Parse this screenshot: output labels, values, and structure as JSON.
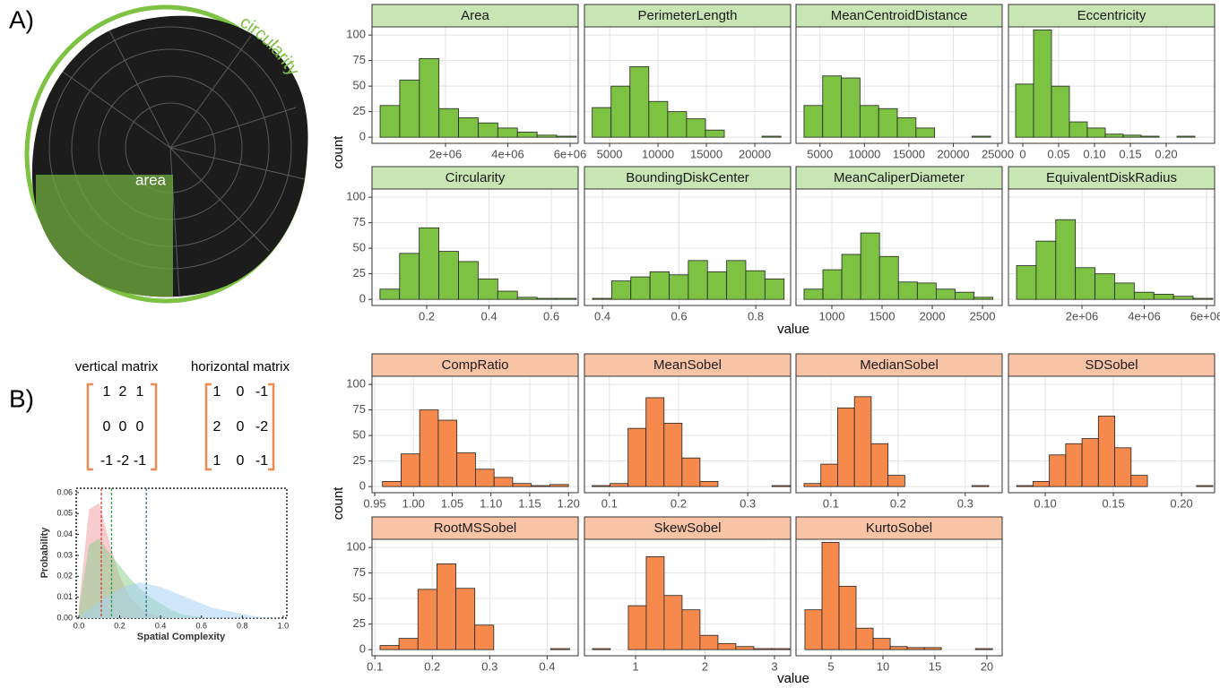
{
  "panels": [
    {
      "label": "A)",
      "ylabel": "count",
      "xlabel": "value"
    },
    {
      "label": "B)",
      "ylabel": "count",
      "xlabel": "value"
    }
  ],
  "image": {
    "circularity_label": "circularity",
    "area_label": "area"
  },
  "matrices": [
    {
      "title": "vertical matrix",
      "rows": [
        [
          1,
          2,
          1
        ],
        [
          0,
          0,
          0
        ],
        [
          -1,
          -2,
          -1
        ]
      ]
    },
    {
      "title": "horizontal matrix",
      "rows": [
        [
          1,
          0,
          -1
        ],
        [
          2,
          0,
          -2
        ],
        [
          1,
          0,
          -1
        ]
      ]
    }
  ],
  "chart_data": [
    {
      "type": "histogram",
      "title": "Area",
      "color": "#7dc242",
      "strip_color": "#c8e6b4",
      "bins": [
        -100000,
        530000,
        1160000,
        1790000,
        2420000,
        3050000,
        3680000,
        4310000,
        4940000,
        5570000,
        6200000
      ],
      "counts": [
        31,
        56,
        77,
        28,
        19,
        14,
        9,
        5,
        2,
        1
      ],
      "xlim": [
        -360000,
        6260000
      ],
      "xticks": [
        {
          "value": 2000000,
          "label": "2e+06"
        },
        {
          "value": 4000000,
          "label": "4e+06"
        },
        {
          "value": 6000000,
          "label": "6e+06"
        }
      ],
      "ylim": [
        -6,
        108
      ],
      "yticks": [
        0,
        25,
        50,
        75,
        100
      ]
    },
    {
      "type": "histogram",
      "title": "PerimeterLength",
      "color": "#7dc242",
      "strip_color": "#c8e6b4",
      "bins": [
        3200,
        5150,
        7100,
        9050,
        11000,
        12950,
        14900,
        16850,
        18800,
        20750,
        22700
      ],
      "counts": [
        29,
        50,
        69,
        35,
        25,
        18,
        7,
        0,
        0,
        1
      ],
      "xlim": [
        2400,
        23700
      ],
      "xticks": [
        5000,
        10000,
        15000,
        20000
      ],
      "ylim": [
        -6,
        108
      ],
      "yticks": [
        0,
        25,
        50,
        75,
        100
      ]
    },
    {
      "type": "histogram",
      "title": "MeanCentroidDistance",
      "color": "#7dc242",
      "strip_color": "#c8e6b4",
      "bins": [
        3200,
        5300,
        7400,
        9500,
        11600,
        13700,
        15800,
        17900,
        20000,
        22100,
        24200
      ],
      "counts": [
        31,
        60,
        58,
        31,
        28,
        19,
        9,
        0,
        0,
        1
      ],
      "xlim": [
        2300,
        25500
      ],
      "xticks": [
        5000,
        10000,
        15000,
        20000,
        25000
      ],
      "ylim": [
        -6,
        108
      ],
      "yticks": [
        0,
        25,
        50,
        75,
        100
      ]
    },
    {
      "type": "histogram",
      "title": "Eccentricity",
      "color": "#7dc242",
      "strip_color": "#c8e6b4",
      "bins": [
        -0.01,
        0.015,
        0.04,
        0.065,
        0.09,
        0.115,
        0.14,
        0.165,
        0.19,
        0.215,
        0.24
      ],
      "counts": [
        52,
        105,
        50,
        15,
        9,
        3,
        2,
        1,
        0,
        1
      ],
      "xlim": [
        -0.02,
        0.2675
      ],
      "xticks": [
        0,
        0.05,
        {
          "value": 0.1,
          "label": "0.10"
        },
        0.15,
        {
          "value": 0.2,
          "label": "0.20"
        }
      ],
      "ylim": [
        -6,
        108
      ],
      "yticks": [
        0,
        25,
        50,
        75,
        100
      ]
    },
    {
      "type": "histogram",
      "title": "Circularity",
      "color": "#7dc242",
      "strip_color": "#c8e6b4",
      "bins": [
        0.05,
        0.113,
        0.176,
        0.239,
        0.302,
        0.365,
        0.428,
        0.491,
        0.554,
        0.617,
        0.68
      ],
      "counts": [
        10,
        45,
        70,
        47,
        37,
        20,
        8,
        2,
        1,
        1
      ],
      "xlim": [
        0.0245,
        0.686
      ],
      "xticks": [
        0.2,
        0.4,
        0.6
      ],
      "ylim": [
        -6,
        108
      ],
      "yticks": [
        0,
        25,
        50,
        75,
        100
      ]
    },
    {
      "type": "histogram",
      "title": "BoundingDiskCenter",
      "color": "#7dc242",
      "strip_color": "#c8e6b4",
      "bins": [
        0.374,
        0.424,
        0.474,
        0.524,
        0.574,
        0.624,
        0.674,
        0.724,
        0.774,
        0.824,
        0.874
      ],
      "counts": [
        1,
        18,
        22,
        27,
        24,
        38,
        27,
        38,
        28,
        20
      ],
      "xlim": [
        0.353,
        0.891
      ],
      "xticks": [
        0.4,
        0.6,
        0.8
      ],
      "ylim": [
        -6,
        108
      ],
      "yticks": [
        0,
        25,
        50,
        75,
        100
      ]
    },
    {
      "type": "histogram",
      "title": "MeanCaliperDiameter",
      "color": "#7dc242",
      "strip_color": "#c8e6b4",
      "bins": [
        723,
        911,
        1099,
        1287,
        1475,
        1663,
        1851,
        2039,
        2227,
        2415,
        2603
      ],
      "counts": [
        10,
        29,
        44,
        65,
        42,
        17,
        16,
        10,
        7,
        2
      ],
      "xlim": [
        643,
        2696
      ],
      "xticks": [
        1000,
        1500,
        2000,
        2500
      ],
      "ylim": [
        -6,
        108
      ],
      "yticks": [
        0,
        25,
        50,
        75,
        100
      ]
    },
    {
      "type": "histogram",
      "title": "EquivalentDiskRadius",
      "color": "#7dc242",
      "strip_color": "#c8e6b4",
      "bins": [
        -100000,
        530000,
        1160000,
        1790000,
        2420000,
        3050000,
        3680000,
        4310000,
        4940000,
        5570000,
        6200000
      ],
      "counts": [
        33,
        57,
        78,
        31,
        25,
        16,
        7,
        5,
        3,
        1
      ],
      "xlim": [
        -360000,
        6260000
      ],
      "xticks": [
        {
          "value": 2000000,
          "label": "2e+06"
        },
        {
          "value": 4000000,
          "label": "4e+06"
        },
        {
          "value": 6000000,
          "label": "6e+06"
        }
      ],
      "ylim": [
        -6,
        108
      ],
      "yticks": [
        0,
        25,
        50,
        75,
        100
      ]
    },
    {
      "type": "histogram",
      "title": "CompRatio",
      "color": "#f58a4c",
      "strip_color": "#f9c4a6",
      "bins": [
        0.96,
        0.984,
        1.008,
        1.032,
        1.056,
        1.08,
        1.104,
        1.128,
        1.152,
        1.176,
        1.2
      ],
      "counts": [
        5,
        32,
        75,
        65,
        33,
        17,
        9,
        3,
        1,
        2
      ],
      "xlim": [
        0.9465,
        1.2125
      ],
      "xticks": [
        0.95,
        {
          "value": 1,
          "label": "1.00"
        },
        1.05,
        {
          "value": 1.1,
          "label": "1.10"
        },
        1.15,
        {
          "value": 1.2,
          "label": "1.20"
        }
      ],
      "ylim": [
        -6,
        108
      ],
      "yticks": [
        0,
        25,
        50,
        75,
        100
      ]
    },
    {
      "type": "histogram",
      "title": "MeanSobel",
      "color": "#f58a4c",
      "strip_color": "#f9c4a6",
      "bins": [
        0.075,
        0.101,
        0.127,
        0.153,
        0.179,
        0.205,
        0.231,
        0.257,
        0.283,
        0.309,
        0.335,
        0.361
      ],
      "counts": [
        1,
        3,
        57,
        87,
        62,
        28,
        5,
        0,
        0,
        0,
        1
      ],
      "xlim": [
        0.064,
        0.362
      ],
      "xticks": [
        0.1,
        0.2,
        0.3
      ],
      "ylim": [
        -6,
        108
      ],
      "yticks": [
        0,
        25,
        50,
        75,
        100
      ]
    },
    {
      "type": "histogram",
      "title": "MedianSobel",
      "color": "#f58a4c",
      "strip_color": "#f9c4a6",
      "bins": [
        0.06,
        0.085,
        0.11,
        0.135,
        0.16,
        0.185,
        0.21,
        0.235,
        0.26,
        0.285,
        0.31,
        0.335
      ],
      "counts": [
        3,
        22,
        77,
        88,
        42,
        11,
        0,
        0,
        0,
        0,
        1
      ],
      "xlim": [
        0.048,
        0.355
      ],
      "xticks": [
        0.1,
        0.2,
        0.3
      ],
      "ylim": [
        -6,
        108
      ],
      "yticks": [
        0,
        25,
        50,
        75,
        100
      ]
    },
    {
      "type": "histogram",
      "title": "SDSobel",
      "color": "#f58a4c",
      "strip_color": "#f9c4a6",
      "bins": [
        0.079,
        0.091,
        0.103,
        0.115,
        0.127,
        0.139,
        0.151,
        0.163,
        0.175,
        0.187,
        0.199,
        0.211,
        0.223
      ],
      "counts": [
        1,
        5,
        31,
        42,
        47,
        69,
        38,
        11,
        0,
        0,
        0,
        1
      ],
      "xlim": [
        0.073,
        0.2243
      ],
      "xticks": [
        {
          "value": 0.1,
          "label": "0.10"
        },
        0.15,
        {
          "value": 0.2,
          "label": "0.20"
        }
      ],
      "ylim": [
        -6,
        108
      ],
      "yticks": [
        0,
        25,
        50,
        75,
        100
      ]
    },
    {
      "type": "histogram",
      "title": "RootMSSobel",
      "color": "#f58a4c",
      "strip_color": "#f9c4a6",
      "bins": [
        0.109,
        0.142,
        0.175,
        0.208,
        0.241,
        0.274,
        0.307,
        0.34,
        0.373,
        0.406,
        0.439
      ],
      "counts": [
        4,
        11,
        59,
        84,
        60,
        24,
        0,
        0,
        0,
        1
      ],
      "xlim": [
        0.095,
        0.454
      ],
      "xticks": [
        0.1,
        0.2,
        0.3,
        0.4
      ],
      "ylim": [
        -6,
        108
      ],
      "yticks": [
        0,
        25,
        50,
        75,
        100
      ]
    },
    {
      "type": "histogram",
      "title": "SkewSobel",
      "color": "#f58a4c",
      "strip_color": "#f9c4a6",
      "bins": [
        0.38,
        0.638,
        0.896,
        1.154,
        1.412,
        1.67,
        1.928,
        2.186,
        2.444,
        2.702,
        2.96,
        3.218
      ],
      "counts": [
        1,
        0,
        43,
        91,
        53,
        39,
        14,
        6,
        3,
        1,
        1
      ],
      "xlim": [
        0.265,
        3.232
      ],
      "xticks": [
        1,
        2,
        3
      ],
      "ylim": [
        -6,
        108
      ],
      "yticks": [
        0,
        25,
        50,
        75,
        100
      ]
    },
    {
      "type": "histogram",
      "title": "KurtoSobel",
      "color": "#f58a4c",
      "strip_color": "#f9c4a6",
      "bins": [
        2.5,
        4.14,
        5.78,
        7.42,
        9.06,
        10.7,
        12.34,
        13.98,
        15.62,
        17.26,
        18.9,
        20.54
      ],
      "counts": [
        39,
        105,
        62,
        21,
        11,
        3,
        2,
        2,
        0,
        0,
        1
      ],
      "xlim": [
        1.64,
        21.47
      ],
      "xticks": [
        5,
        10,
        15,
        20
      ],
      "ylim": [
        -6,
        108
      ],
      "yticks": [
        0,
        25,
        50,
        75,
        100
      ]
    },
    {
      "type": "area",
      "xlabel": "Spatial Complexity",
      "ylabel": "Probability",
      "x": [
        0,
        0.05,
        0.1,
        0.15,
        0.2,
        0.25,
        0.3,
        0.35,
        0.4,
        0.45,
        0.5,
        0.55,
        0.6,
        0.65,
        0.7,
        0.75,
        0.8,
        0.85,
        0.9,
        0.95,
        1
      ],
      "series": [
        {
          "color": "#f2a0a8",
          "line_color": "#d0413a",
          "vline": 0.11,
          "values": [
            0.006,
            0.052,
            0.055,
            0.036,
            0.02,
            0.01,
            0.005,
            0.002,
            0.001,
            0,
            0,
            0,
            0,
            0,
            0,
            0,
            0,
            0,
            0,
            0,
            0
          ]
        },
        {
          "color": "#8fcf8f",
          "line_color": "#3a9a4a",
          "vline": 0.16,
          "values": [
            0.004,
            0.035,
            0.038,
            0.031,
            0.025,
            0.019,
            0.014,
            0.01,
            0.007,
            0.004,
            0.002,
            0.001,
            0.0005,
            0,
            0,
            0,
            0,
            0,
            0,
            0,
            0
          ]
        },
        {
          "color": "#a8d4f2",
          "line_color": "#3a70a0",
          "vline": 0.33,
          "values": [
            0.001,
            0.004,
            0.008,
            0.011,
            0.014,
            0.016,
            0.017,
            0.016,
            0.015,
            0.013,
            0.011,
            0.009,
            0.007,
            0.005,
            0.004,
            0.003,
            0.002,
            0.001,
            0.0005,
            0.0002,
            0
          ]
        }
      ],
      "xlim": [
        -0.013,
        1.018
      ],
      "xticks": [
        {
          "value": 0,
          "label": "0.0"
        },
        0.2,
        0.4,
        0.6,
        0.8,
        {
          "value": 1,
          "label": "1.0"
        }
      ],
      "ylim": [
        0,
        0.0621
      ],
      "yticks": [
        {
          "value": 0,
          "label": "0.00"
        },
        {
          "value": 0.01,
          "label": "0.01"
        },
        {
          "value": 0.02,
          "label": "0.02"
        },
        {
          "value": 0.03,
          "label": "0.03"
        },
        {
          "value": 0.04,
          "label": "0.04"
        },
        {
          "value": 0.05,
          "label": "0.05"
        },
        {
          "value": 0.06,
          "label": "0.06"
        }
      ]
    }
  ]
}
